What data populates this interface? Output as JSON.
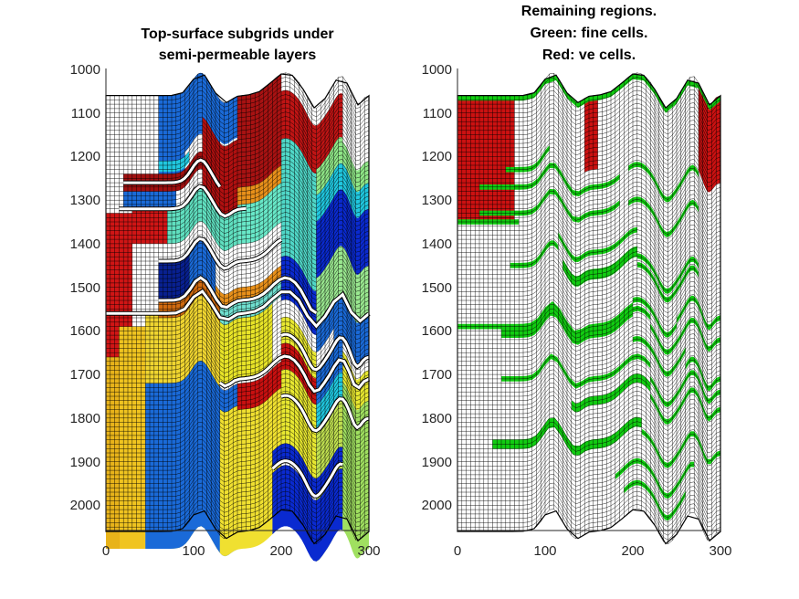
{
  "chart_data": [
    {
      "type": "mesh",
      "title": [
        "Top-surface subgrids under",
        "semi-permeable layers"
      ],
      "xlim": [
        0,
        300
      ],
      "ylim": [
        1000,
        2060
      ],
      "y_reversed": true,
      "x_ticks": [
        "0",
        "100",
        "200",
        "300"
      ],
      "y_ticks": [
        "1000",
        "1100",
        "1200",
        "1300",
        "1400",
        "1500",
        "1600",
        "1700",
        "1800",
        "1900",
        "2000"
      ],
      "x_tick_values": [
        0,
        100,
        200,
        300
      ],
      "y_tick_values": [
        1000,
        1100,
        1200,
        1300,
        1400,
        1500,
        1600,
        1700,
        1800,
        1900,
        2000
      ],
      "background_color": "#ffffff",
      "grid_line_color": "#000000",
      "regions": [
        {
          "x0": 0,
          "x1": 30,
          "top": 270,
          "bot": 1040,
          "color": "#d01515"
        },
        {
          "x0": 30,
          "x1": 120,
          "top": 255,
          "bot": 340,
          "color": "#d01515"
        },
        {
          "x0": 0,
          "x1": 15,
          "top": 600,
          "bot": 1040,
          "color": "#e8b31a"
        },
        {
          "x0": 15,
          "x1": 45,
          "top": 530,
          "bot": 1040,
          "color": "#f0c420"
        },
        {
          "x0": 45,
          "x1": 130,
          "top": 500,
          "bot": 1040,
          "color": "#f0d530"
        },
        {
          "x0": 45,
          "x1": 130,
          "top": 660,
          "bot": 1040,
          "color": "#1a6ad8"
        },
        {
          "x0": 130,
          "x1": 150,
          "top": 660,
          "bot": 1040,
          "color": "#1a6ad8"
        },
        {
          "x0": 130,
          "x1": 190,
          "top": 500,
          "bot": 650,
          "color": "#e8e428"
        },
        {
          "x0": 130,
          "x1": 200,
          "top": 710,
          "bot": 1040,
          "color": "#f0e030"
        },
        {
          "x0": 150,
          "x1": 200,
          "top": 660,
          "bot": 720,
          "color": "#c81010"
        },
        {
          "x0": 200,
          "x1": 240,
          "top": 560,
          "bot": 620,
          "color": "#e8e830"
        },
        {
          "x0": 60,
          "x1": 90,
          "top": 0,
          "bot": 200,
          "color": "#1a6ad8"
        },
        {
          "x0": 90,
          "x1": 115,
          "top": 0,
          "bot": 95,
          "color": "#1a6ad8"
        },
        {
          "x0": 115,
          "x1": 150,
          "top": 0,
          "bot": 95,
          "color": "#1a6ad8"
        },
        {
          "x0": 60,
          "x1": 95,
          "top": 150,
          "bot": 175,
          "color": "#20c8e0"
        },
        {
          "x0": 90,
          "x1": 130,
          "top": 90,
          "bot": 140,
          "color": "#1a6ad8"
        },
        {
          "x0": 20,
          "x1": 80,
          "top": 210,
          "bot": 255,
          "color": "#1a6ad8"
        },
        {
          "x0": 20,
          "x1": 120,
          "top": 180,
          "bot": 220,
          "color": "#a01010"
        },
        {
          "x0": 110,
          "x1": 150,
          "top": 100,
          "bot": 260,
          "color": "#b01010"
        },
        {
          "x0": 150,
          "x1": 200,
          "top": 0,
          "bot": 210,
          "color": "#a81212"
        },
        {
          "x0": 200,
          "x1": 240,
          "top": 40,
          "bot": 150,
          "color": "#c01414"
        },
        {
          "x0": 240,
          "x1": 270,
          "top": 40,
          "bot": 140,
          "color": "#c01414"
        },
        {
          "x0": 150,
          "x1": 200,
          "top": 210,
          "bot": 250,
          "color": "#e8901a"
        },
        {
          "x0": 70,
          "x1": 150,
          "top": 260,
          "bot": 340,
          "color": "#60e0c0"
        },
        {
          "x0": 150,
          "x1": 200,
          "top": 250,
          "bot": 340,
          "color": "#68e8c8"
        },
        {
          "x0": 200,
          "x1": 240,
          "top": 150,
          "bot": 420,
          "color": "#50d8c8"
        },
        {
          "x0": 240,
          "x1": 270,
          "top": 140,
          "bot": 200,
          "color": "#90e888"
        },
        {
          "x0": 270,
          "x1": 300,
          "top": 150,
          "bot": 200,
          "color": "#90e888"
        },
        {
          "x0": 240,
          "x1": 300,
          "top": 200,
          "bot": 260,
          "color": "#20c8e0"
        },
        {
          "x0": 240,
          "x1": 300,
          "top": 260,
          "bot": 390,
          "color": "#0a2ad0"
        },
        {
          "x0": 240,
          "x1": 300,
          "top": 390,
          "bot": 500,
          "color": "#9ae890"
        },
        {
          "x0": 60,
          "x1": 95,
          "top": 380,
          "bot": 470,
          "color": "#082090"
        },
        {
          "x0": 95,
          "x1": 125,
          "top": 380,
          "bot": 470,
          "color": "#1a6ad8"
        },
        {
          "x0": 125,
          "x1": 200,
          "top": 440,
          "bot": 470,
          "color": "#e8901a"
        },
        {
          "x0": 60,
          "x1": 130,
          "top": 470,
          "bot": 510,
          "color": "#d06a10"
        },
        {
          "x0": 130,
          "x1": 200,
          "top": 470,
          "bot": 510,
          "color": "#70e0d0"
        },
        {
          "x0": 200,
          "x1": 240,
          "top": 420,
          "bot": 520,
          "color": "#0a2ad0"
        },
        {
          "x0": 240,
          "x1": 260,
          "top": 500,
          "bot": 560,
          "color": "#1a6ad8"
        },
        {
          "x0": 260,
          "x1": 300,
          "top": 500,
          "bot": 600,
          "color": "#1a6ad8"
        },
        {
          "x0": 200,
          "x1": 240,
          "top": 620,
          "bot": 680,
          "color": "#c81010"
        },
        {
          "x0": 240,
          "x1": 270,
          "top": 600,
          "bot": 680,
          "color": "#1a6ad8"
        },
        {
          "x0": 270,
          "x1": 300,
          "top": 630,
          "bot": 700,
          "color": "#e8e830"
        },
        {
          "x0": 240,
          "x1": 270,
          "top": 680,
          "bot": 740,
          "color": "#20c8e0"
        },
        {
          "x0": 200,
          "x1": 240,
          "top": 680,
          "bot": 780,
          "color": "#e8e830"
        },
        {
          "x0": 240,
          "x1": 270,
          "top": 740,
          "bot": 1040,
          "color": "#c0e050"
        },
        {
          "x0": 270,
          "x1": 300,
          "top": 700,
          "bot": 1040,
          "color": "#a0e060"
        },
        {
          "x0": 200,
          "x1": 240,
          "top": 780,
          "bot": 850,
          "color": "#e8e830"
        },
        {
          "x0": 190,
          "x1": 270,
          "top": 850,
          "bot": 890,
          "color": "#0a2ad0"
        },
        {
          "x0": 190,
          "x1": 270,
          "top": 900,
          "bot": 1040,
          "color": "#0a2ad0"
        },
        {
          "x0": 270,
          "x1": 300,
          "top": 900,
          "bot": 1040,
          "color": "#a0e060"
        }
      ],
      "layer_lines": [
        {
          "x0": 20,
          "x1": 130,
          "d": 200
        },
        {
          "x0": 15,
          "x1": 160,
          "d": 260
        },
        {
          "x0": 60,
          "x1": 200,
          "d": 380
        },
        {
          "x0": 60,
          "x1": 240,
          "d": 470
        },
        {
          "x0": 0,
          "x1": 300,
          "d": 500
        },
        {
          "x0": 200,
          "x1": 300,
          "d": 600
        },
        {
          "x0": 130,
          "x1": 300,
          "d": 650
        },
        {
          "x0": 200,
          "x1": 300,
          "d": 740
        },
        {
          "x0": 190,
          "x1": 270,
          "d": 890
        }
      ]
    },
    {
      "type": "mesh",
      "title": [
        "Remaining regions.",
        "Green: fine cells.",
        "Red: ve cells."
      ],
      "xlim": [
        0,
        300
      ],
      "ylim": [
        1000,
        2060
      ],
      "y_reversed": true,
      "x_ticks": [
        "0",
        "100",
        "200",
        "300"
      ],
      "y_ticks": [
        "1000",
        "1100",
        "1200",
        "1300",
        "1400",
        "1500",
        "1600",
        "1700",
        "1800",
        "1900",
        "2000"
      ],
      "x_tick_values": [
        0,
        100,
        200,
        300
      ],
      "y_tick_values": [
        1000,
        1100,
        1200,
        1300,
        1400,
        1500,
        1600,
        1700,
        1800,
        1900,
        2000
      ],
      "background_color": "#ffffff",
      "grid_line_color": "#000000",
      "fine_color": "#11cc11",
      "ve_color": "#cc1111",
      "regions": [
        {
          "x0": 0,
          "x1": 65,
          "top": 0,
          "bot": 290,
          "color": "#cc1111"
        },
        {
          "x0": 145,
          "x1": 160,
          "top": 0,
          "bot": 170,
          "color": "#cc1111"
        },
        {
          "x0": 275,
          "x1": 300,
          "top": 0,
          "bot": 200,
          "color": "#cc1111"
        },
        {
          "x0": 0,
          "x1": 300,
          "top": 0,
          "bot": 12,
          "color": "#11cc11"
        }
      ],
      "fine_bands": [
        {
          "x0": 55,
          "x1": 105,
          "d": 170
        },
        {
          "x0": 0,
          "x1": 70,
          "d": 290
        },
        {
          "x0": 25,
          "x1": 185,
          "d": 210
        },
        {
          "x0": 195,
          "x1": 275,
          "d": 210
        },
        {
          "x0": 25,
          "x1": 185,
          "d": 270
        },
        {
          "x0": 195,
          "x1": 275,
          "d": 290
        },
        {
          "x0": 60,
          "x1": 115,
          "d": 390
        },
        {
          "x0": 115,
          "x1": 205,
          "d": 360
        },
        {
          "x0": 205,
          "x1": 275,
          "d": 420
        },
        {
          "x0": 120,
          "x1": 205,
          "d": 410,
          "w": 24
        },
        {
          "x0": 205,
          "x1": 275,
          "d": 440
        },
        {
          "x0": 0,
          "x1": 200,
          "d": 530
        },
        {
          "x0": 200,
          "x1": 250,
          "d": 520
        },
        {
          "x0": 250,
          "x1": 300,
          "d": 510
        },
        {
          "x0": 50,
          "x1": 220,
          "d": 540
        },
        {
          "x0": 220,
          "x1": 300,
          "d": 560
        },
        {
          "x0": 50,
          "x1": 200,
          "d": 550
        },
        {
          "x0": 200,
          "x1": 260,
          "d": 610
        },
        {
          "x0": 260,
          "x1": 300,
          "d": 650
        },
        {
          "x0": 50,
          "x1": 220,
          "d": 650
        },
        {
          "x0": 220,
          "x1": 300,
          "d": 680
        },
        {
          "x0": 130,
          "x1": 220,
          "d": 700,
          "w": 20
        },
        {
          "x0": 220,
          "x1": 300,
          "d": 720
        },
        {
          "x0": 40,
          "x1": 210,
          "d": 800,
          "w": 22
        },
        {
          "x0": 210,
          "x1": 300,
          "d": 820
        },
        {
          "x0": 180,
          "x1": 270,
          "d": 890
        },
        {
          "x0": 190,
          "x1": 260,
          "d": 940
        }
      ]
    }
  ]
}
